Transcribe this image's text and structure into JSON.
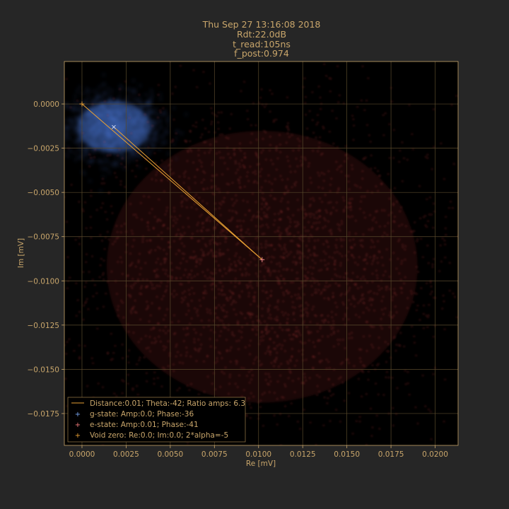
{
  "colors": {
    "background": "#262626",
    "plot_background": "#000000",
    "text": "#c9a66b",
    "grid": "#5a4a2c",
    "g_state": "#4a78d6",
    "e_state": "#c0393b",
    "line": "#e8a033"
  },
  "chart_data": {
    "type": "scatter",
    "title_lines": [
      "Thu Sep 27 13:16:08 2018",
      "Rdt:22.0dB",
      "t_read:105ns",
      "f_post:0.974"
    ],
    "xlabel": "Re [mV]",
    "ylabel": "Im [mV]",
    "xlim": [
      -0.001,
      0.0213
    ],
    "ylim": [
      -0.0193,
      0.0024
    ],
    "xticks": [
      0.0,
      0.0025,
      0.005,
      0.0075,
      0.01,
      0.0125,
      0.015,
      0.0175,
      0.02
    ],
    "xtick_labels": [
      "0.0000",
      "0.0025",
      "0.0050",
      "0.0075",
      "0.0100",
      "0.0125",
      "0.0150",
      "0.0175",
      "0.0200"
    ],
    "yticks": [
      0.0,
      -0.0025,
      -0.005,
      -0.0075,
      -0.01,
      -0.0125,
      -0.015,
      -0.0175
    ],
    "ytick_labels": [
      "0.0000",
      "−0.0025",
      "−0.0050",
      "−0.0075",
      "−0.0100",
      "−0.0125",
      "−0.0150",
      "−0.0175"
    ],
    "grid": true,
    "legend_position": "lower-left",
    "clusters": [
      {
        "name": "g-state",
        "center": [
          0.0018,
          -0.0013
        ],
        "spread": [
          0.0013,
          0.0009
        ],
        "color": "#4a78d6"
      },
      {
        "name": "e-state",
        "center": [
          0.0102,
          -0.0092
        ],
        "spread": [
          0.0055,
          0.0048
        ],
        "color": "#c0393b"
      }
    ],
    "points": {
      "void_zero": [
        0.0,
        0.0
      ],
      "g_state": [
        0.0018,
        -0.0013
      ],
      "e_state": [
        0.0102,
        -0.0088
      ]
    },
    "legend": [
      {
        "marker": "line",
        "label": "Distance:0.01; Theta:-42; Ratio amps: 6.3",
        "color": "#e8a033"
      },
      {
        "marker": "plus",
        "label": "g-state: Amp:0.0; Phase:-36",
        "color": "#7aa6f0"
      },
      {
        "marker": "plus",
        "label": "e-state: Amp:0.01; Phase:-41",
        "color": "#f07a7a"
      },
      {
        "marker": "plus",
        "label": "Void zero: Re:0.0; Im:0.0; 2*alpha=-5",
        "color": "#e8a033"
      }
    ]
  }
}
